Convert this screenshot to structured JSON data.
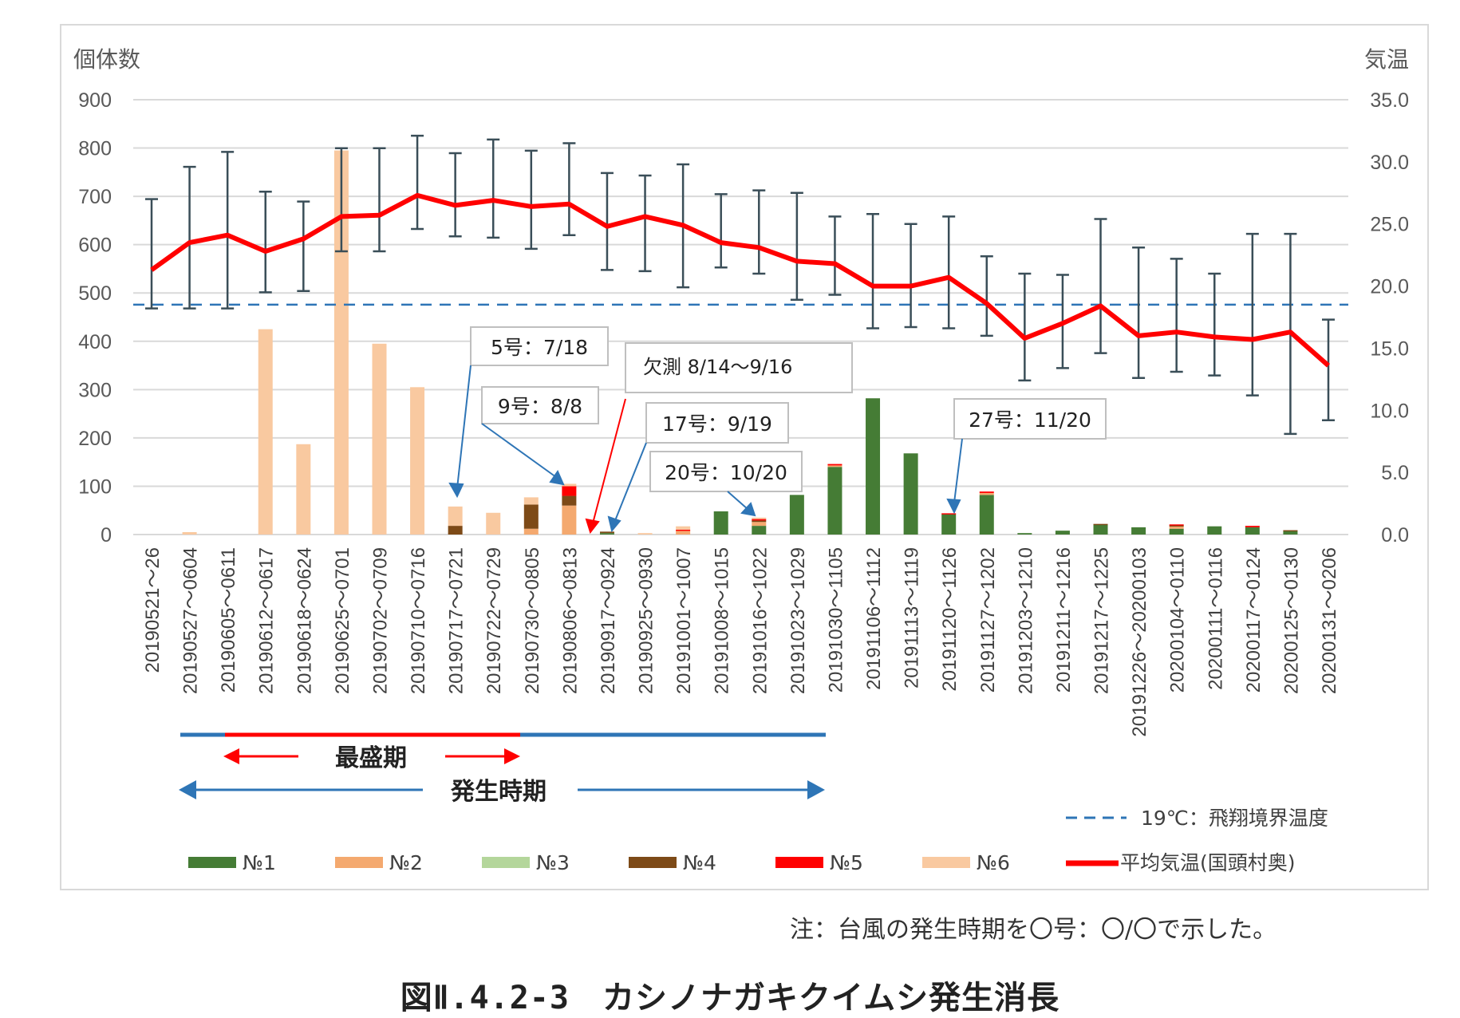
{
  "chart_data": {
    "type": "bar",
    "stacked": true,
    "title": "",
    "ylabel_left": "個体数",
    "ylabel_right": "気温",
    "ylim_left": [
      0,
      900
    ],
    "ylim_right": [
      0,
      35
    ],
    "yticks_left": [
      "0",
      "100",
      "200",
      "300",
      "400",
      "500",
      "600",
      "700",
      "800",
      "900"
    ],
    "yticks_right": [
      "0.0",
      "5.0",
      "10.0",
      "15.0",
      "20.0",
      "25.0",
      "30.0",
      "35.0"
    ],
    "categories": [
      "20190521～26",
      "20190527～0604",
      "20190605～0611",
      "20190612～0617",
      "20190618～0624",
      "20190625～0701",
      "20190702～0709",
      "20190710～0716",
      "20190717～0721",
      "20190722～0729",
      "20190730～0805",
      "20190806～0813",
      "20190917～0924",
      "20190925～0930",
      "20191001～1007",
      "20191008～1015",
      "20191016～1022",
      "20191023～1029",
      "20191030～1105",
      "20191106～1112",
      "20191113～1119",
      "20191120～1126",
      "20191127～1202",
      "20191203～1210",
      "20191211～1216",
      "20191217～1225",
      "20191226～20200103",
      "20200104～0110",
      "20200111～0116",
      "20200117～0124",
      "20200125～0130",
      "20200131～0206"
    ],
    "series": [
      {
        "name": "№1",
        "color": "#457C35",
        "values": [
          0,
          0,
          0,
          0,
          0,
          0,
          0,
          0,
          0,
          0,
          0,
          0,
          3,
          0,
          0,
          48,
          18,
          82,
          140,
          282,
          168,
          42,
          82,
          3,
          8,
          20,
          15,
          12,
          17,
          15,
          7,
          0
        ]
      },
      {
        "name": "№2",
        "color": "#F4A96F",
        "values": [
          0,
          0,
          0,
          0,
          0,
          0,
          0,
          0,
          0,
          0,
          12,
          60,
          0,
          0,
          8,
          0,
          8,
          0,
          3,
          0,
          0,
          0,
          4,
          0,
          0,
          0,
          0,
          5,
          0,
          0,
          0,
          0
        ]
      },
      {
        "name": "№3",
        "color": "#B4D69B",
        "values": [
          0,
          0,
          0,
          0,
          0,
          0,
          0,
          0,
          0,
          0,
          0,
          0,
          0,
          0,
          0,
          0,
          0,
          0,
          0,
          0,
          0,
          0,
          0,
          0,
          0,
          0,
          0,
          0,
          0,
          0,
          0,
          0
        ]
      },
      {
        "name": "№4",
        "color": "#7D4A17",
        "values": [
          0,
          0,
          0,
          0,
          0,
          0,
          0,
          0,
          18,
          0,
          50,
          20,
          3,
          0,
          0,
          0,
          3,
          0,
          0,
          0,
          0,
          0,
          0,
          0,
          0,
          2,
          0,
          2,
          0,
          0,
          2,
          0
        ]
      },
      {
        "name": "№5",
        "color": "#FF0000",
        "values": [
          0,
          0,
          0,
          0,
          0,
          0,
          0,
          0,
          0,
          0,
          0,
          20,
          0,
          0,
          2,
          0,
          3,
          0,
          3,
          0,
          0,
          2,
          3,
          0,
          0,
          0,
          0,
          2,
          0,
          3,
          0,
          0
        ]
      },
      {
        "name": "№6",
        "color": "#F9C9A0",
        "values": [
          0,
          5,
          0,
          425,
          187,
          795,
          395,
          305,
          40,
          45,
          15,
          5,
          0,
          3,
          7,
          0,
          3,
          0,
          0,
          0,
          0,
          0,
          0,
          0,
          0,
          0,
          0,
          0,
          0,
          0,
          0,
          0
        ]
      }
    ],
    "line": {
      "name": "平均気温(国頭村奥)",
      "color": "#FF0000",
      "values": [
        21.3,
        23.5,
        24.1,
        22.8,
        23.8,
        25.6,
        25.7,
        27.3,
        26.5,
        26.9,
        26.4,
        26.6,
        24.8,
        25.6,
        24.9,
        23.5,
        23.1,
        22.0,
        21.8,
        20.0,
        20.0,
        20.7,
        18.6,
        15.8,
        17.0,
        18.4,
        16.0,
        16.3,
        15.9,
        15.7,
        16.3,
        13.6
      ],
      "err_low": [
        18.2,
        18.2,
        18.2,
        19.5,
        19.6,
        22.8,
        22.8,
        24.6,
        24.0,
        23.9,
        23.0,
        24.1,
        21.3,
        21.2,
        19.9,
        21.5,
        21.0,
        18.9,
        19.3,
        16.6,
        16.7,
        16.6,
        16.0,
        12.4,
        13.4,
        14.6,
        12.6,
        13.1,
        12.8,
        11.2,
        8.1,
        9.2
      ],
      "err_high": [
        27.0,
        29.6,
        30.8,
        27.6,
        26.8,
        31.1,
        31.1,
        32.1,
        30.7,
        31.8,
        30.9,
        31.5,
        29.1,
        28.9,
        29.8,
        27.4,
        27.7,
        27.5,
        25.6,
        25.8,
        25.0,
        25.6,
        22.4,
        21.0,
        20.9,
        25.4,
        23.1,
        22.2,
        21.0,
        24.2,
        24.2,
        17.3
      ]
    },
    "reference_line": {
      "name": "19℃：飛翔境界温度",
      "value_right": 18.5,
      "color": "#2E75B6"
    },
    "annotations": [
      "5号：7/18",
      "9号：8/8",
      "欠測 8/14～9/16",
      "17号：9/19",
      "20号：10/20",
      "27号：11/20"
    ],
    "periods": {
      "peak": "最盛期",
      "occurrence": "発生時期"
    }
  },
  "note": "注：台風の発生時期を〇号：〇/〇で示した。",
  "caption": "図Ⅱ.4.2-3　カシノナガキクイムシ発生消長"
}
